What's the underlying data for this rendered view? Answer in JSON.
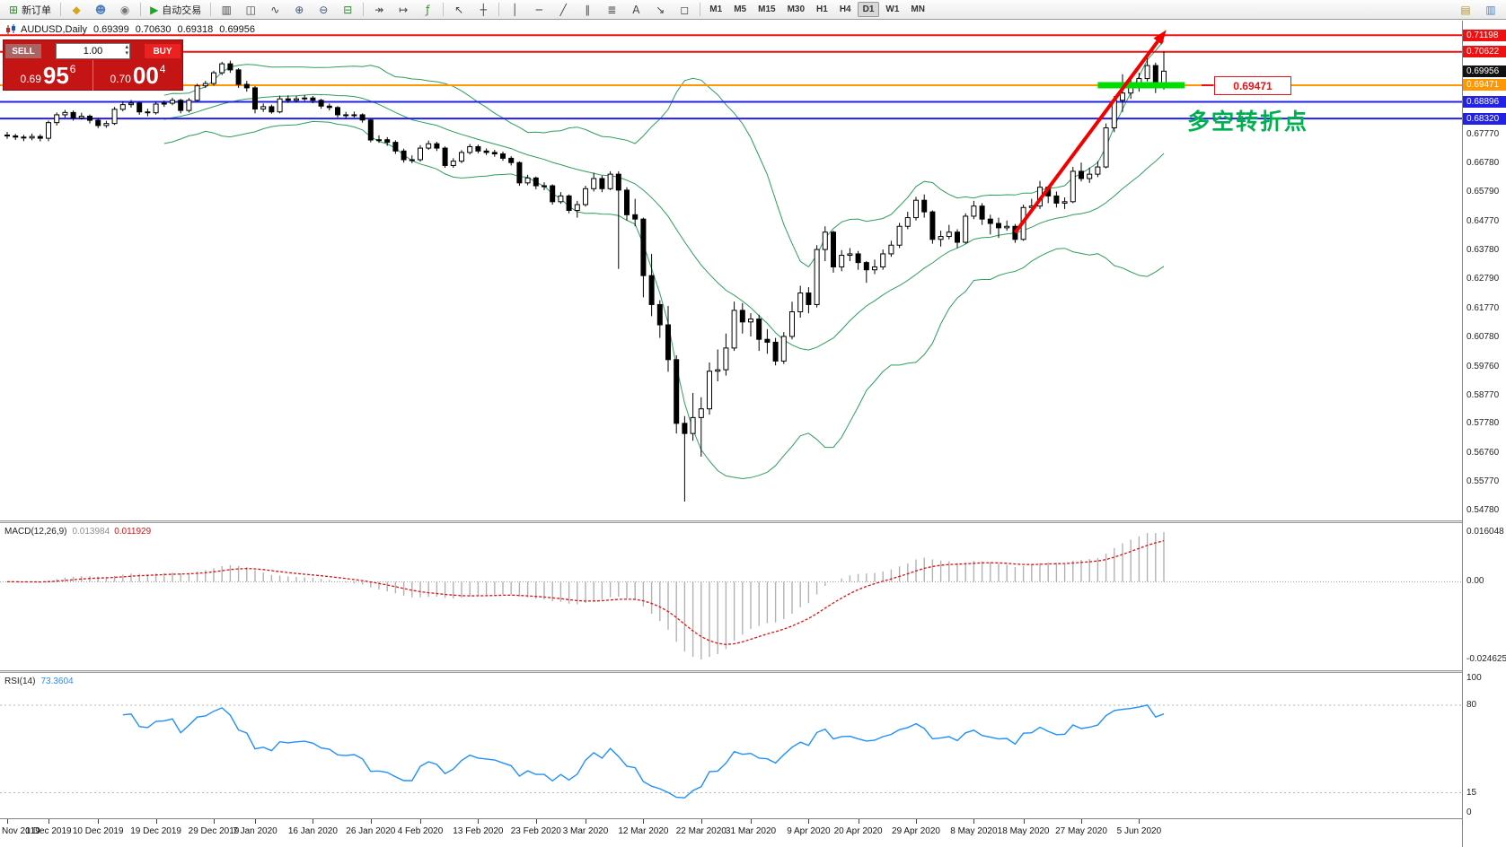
{
  "header": {
    "symbol": "AUDUSD,Daily",
    "open": "0.69399",
    "high": "0.70630",
    "low": "0.69318",
    "close": "0.69956"
  },
  "trade_panel": {
    "sell_label": "SELL",
    "buy_label": "BUY",
    "volume": "1.00",
    "bid": {
      "prefix": "0.69",
      "big": "95",
      "sup": "6"
    },
    "ask": {
      "prefix": "0.70",
      "big": "00",
      "sup": "4"
    }
  },
  "glyphs": {
    "caret_up": "▴",
    "caret_down": "▾"
  },
  "toolbar": {
    "new_order": {
      "label": "新订单",
      "icon": "⊞",
      "icon_color": "#2e8b2e"
    },
    "autotrading": {
      "label": "自动交易",
      "icon": "▶",
      "icon_color": "#1fa51f"
    },
    "icons_a": [
      {
        "name": "accounts-icon",
        "glyph": "◆",
        "color": "#d9a520"
      },
      {
        "name": "community-icon",
        "glyph": "☻",
        "color": "#4f81bd"
      },
      {
        "name": "notifications-icon",
        "glyph": "◉",
        "color": "#777777"
      }
    ],
    "icons_b": [
      {
        "name": "bar-chart-icon",
        "glyph": "▥",
        "color": "#444444"
      },
      {
        "name": "candlestick-chart-icon",
        "glyph": "◫",
        "color": "#444444"
      },
      {
        "name": "line-chart-icon",
        "glyph": "∿",
        "color": "#444444"
      },
      {
        "name": "zoom-in-icon",
        "glyph": "⊕",
        "color": "#44547a"
      },
      {
        "name": "zoom-out-icon",
        "glyph": "⊖",
        "color": "#44547a"
      },
      {
        "name": "templates-icon",
        "glyph": "⊟",
        "color": "#2e8b2e"
      }
    ],
    "icons_c": [
      {
        "name": "auto-scroll-icon",
        "glyph": "↠",
        "color": "#444444"
      },
      {
        "name": "chart-shift-icon",
        "glyph": "↦",
        "color": "#444444"
      },
      {
        "name": "indicators-icon",
        "glyph": "ƒ",
        "color": "#2e8b2e"
      }
    ],
    "icons_d": [
      {
        "name": "cursor-icon",
        "glyph": "↖",
        "color": "#444444"
      },
      {
        "name": "crosshair-icon",
        "glyph": "┼",
        "color": "#444444"
      }
    ],
    "icons_e": [
      {
        "name": "vertical-line-icon",
        "glyph": "│",
        "color": "#444444"
      },
      {
        "name": "horizontal-line-icon",
        "glyph": "─",
        "color": "#444444"
      },
      {
        "name": "trendline-icon",
        "glyph": "╱",
        "color": "#444444"
      },
      {
        "name": "channel-icon",
        "glyph": "∥",
        "color": "#444444"
      },
      {
        "name": "fibonacci-icon",
        "glyph": "≣",
        "color": "#444444"
      },
      {
        "name": "text-icon",
        "glyph": "A",
        "color": "#444444"
      },
      {
        "name": "arrows-icon",
        "glyph": "↘",
        "color": "#444444"
      },
      {
        "name": "shapes-icon",
        "glyph": "◻",
        "color": "#444444"
      }
    ],
    "timeframes": [
      "M1",
      "M5",
      "M15",
      "M30",
      "H1",
      "H4",
      "D1",
      "W1",
      "MN"
    ],
    "active_timeframe": "D1",
    "right_icons": [
      {
        "name": "new-chart-icon",
        "glyph": "▤",
        "color": "#b8952e"
      },
      {
        "name": "window-list-icon",
        "glyph": "▥",
        "color": "#4f81bd"
      }
    ]
  },
  "price_axis": {
    "ticks": [
      "0.67770",
      "0.66780",
      "0.65790",
      "0.64770",
      "0.63780",
      "0.62790",
      "0.61770",
      "0.60780",
      "0.59760",
      "0.58770",
      "0.57780",
      "0.56760",
      "0.55770",
      "0.54780"
    ],
    "badges": [
      {
        "text": "0.71198",
        "price": 0.71198,
        "bg": "#ee1111",
        "fg": "#ffffff"
      },
      {
        "text": "0.70622",
        "price": 0.70622,
        "bg": "#ee1111",
        "fg": "#ffffff"
      },
      {
        "text": "0.69956",
        "price": 0.69956,
        "bg": "#111111",
        "fg": "#ffffff"
      },
      {
        "text": "0.69471",
        "price": 0.69471,
        "bg": "#ff9800",
        "fg": "#ffffff"
      },
      {
        "text": "0.68896",
        "price": 0.68896,
        "bg": "#2121e8",
        "fg": "#ffffff"
      },
      {
        "text": "0.68320",
        "price": 0.6832,
        "bg": "#2121e8",
        "fg": "#ffffff"
      }
    ]
  },
  "macd_panel": {
    "label": "MACD(12,26,9)",
    "main_value": "0.013984",
    "signal_value": "0.011929",
    "fast": 12,
    "slow": 26,
    "signal": 9,
    "axis_max": "0.016048",
    "axis_zero": "0.00",
    "axis_min": "-0.024625",
    "histogram_color": "#b2b2b2",
    "signal_color": "#e01010"
  },
  "rsi_panel": {
    "label": "RSI(14)",
    "value": "73.3604",
    "period": 14,
    "axis_labels": [
      "100",
      "80",
      "15",
      "0"
    ],
    "levels": [
      80,
      15
    ],
    "line_color": "#1e90ff"
  },
  "chart_data": {
    "type": "candlestick",
    "symbol": "AUDUSD",
    "timeframe": "Daily",
    "title": "AUDUSD,Daily 0.69399 0.70630 0.69318 0.69956",
    "y_range": [
      0.5445,
      0.717
    ],
    "last_ohlc": {
      "open": 0.69399,
      "high": 0.7063,
      "low": 0.69318,
      "close": 0.69956
    },
    "candle_colors": {
      "up": "#ffffff",
      "down": "#000000",
      "outline": "#000000"
    },
    "overlays": {
      "bollinger_period": 20,
      "bollinger_deviation": 2,
      "bollinger_color": "#2e9e5b"
    },
    "levels": [
      {
        "price": 0.71198,
        "color": "#ee1111",
        "width": 2
      },
      {
        "price": 0.70622,
        "color": "#ee1111",
        "width": 2
      },
      {
        "price": 0.69471,
        "color": "#ff9800",
        "width": 2
      },
      {
        "price": 0.68896,
        "color": "#2121e8",
        "width": 2
      },
      {
        "price": 0.6832,
        "color": "#2121e8",
        "width": 2
      }
    ],
    "highlight": {
      "price": 0.69471,
      "from_index": 132,
      "to_index": 142.5,
      "color": "#00dd00"
    },
    "arrow": {
      "from_index": 122,
      "from_price": 0.6438,
      "to_index": 140.3,
      "to_price": 0.7138,
      "color": "#f20000"
    },
    "annotation": {
      "text": "多空转折点",
      "color": "#00b050"
    },
    "price_label": {
      "text": "0.69471",
      "color": "#e81010"
    },
    "x_labels": [
      {
        "label": "Nov 2019",
        "index": 0
      },
      {
        "label": "1 Dec 2019",
        "index": 5
      },
      {
        "label": "10 Dec 2019",
        "index": 11
      },
      {
        "label": "19 Dec 2019",
        "index": 18
      },
      {
        "label": "29 Dec 2019",
        "index": 25
      },
      {
        "label": "7 Jan 2020",
        "index": 30
      },
      {
        "label": "16 Jan 2020",
        "index": 37
      },
      {
        "label": "26 Jan 2020",
        "index": 44
      },
      {
        "label": "4 Feb 2020",
        "index": 50
      },
      {
        "label": "13 Feb 2020",
        "index": 57
      },
      {
        "label": "23 Feb 2020",
        "index": 64
      },
      {
        "label": "3 Mar 2020",
        "index": 70
      },
      {
        "label": "12 Mar 2020",
        "index": 77
      },
      {
        "label": "22 Mar 2020",
        "index": 84
      },
      {
        "label": "31 Mar 2020",
        "index": 90
      },
      {
        "label": "9 Apr 2020",
        "index": 97
      },
      {
        "label": "20 Apr 2020",
        "index": 103
      },
      {
        "label": "29 Apr 2020",
        "index": 110
      },
      {
        "label": "8 May 2020",
        "index": 117
      },
      {
        "label": "18 May 2020",
        "index": 123
      },
      {
        "label": "27 May 2020",
        "index": 130
      },
      {
        "label": "5 Jun 2020",
        "index": 137
      }
    ],
    "candles": [
      [
        0.6775,
        0.6786,
        0.6762,
        0.6772
      ],
      [
        0.6772,
        0.6779,
        0.6758,
        0.6768
      ],
      [
        0.6768,
        0.6776,
        0.6754,
        0.6765
      ],
      [
        0.6765,
        0.678,
        0.6757,
        0.677
      ],
      [
        0.677,
        0.6778,
        0.6753,
        0.6764
      ],
      [
        0.6764,
        0.6825,
        0.6754,
        0.6818
      ],
      [
        0.6818,
        0.6853,
        0.6808,
        0.6845
      ],
      [
        0.6845,
        0.6862,
        0.6835,
        0.6853
      ],
      [
        0.6853,
        0.686,
        0.6825,
        0.6834
      ],
      [
        0.6834,
        0.6852,
        0.6828,
        0.684
      ],
      [
        0.684,
        0.6846,
        0.6815,
        0.6826
      ],
      [
        0.6826,
        0.6833,
        0.6799,
        0.6808
      ],
      [
        0.6808,
        0.6824,
        0.68,
        0.6815
      ],
      [
        0.6815,
        0.6872,
        0.681,
        0.6864
      ],
      [
        0.6864,
        0.6892,
        0.6857,
        0.688
      ],
      [
        0.688,
        0.6896,
        0.687,
        0.6885
      ],
      [
        0.6885,
        0.689,
        0.6845,
        0.6855
      ],
      [
        0.6855,
        0.6866,
        0.684,
        0.6852
      ],
      [
        0.6852,
        0.689,
        0.6846,
        0.6882
      ],
      [
        0.6882,
        0.6894,
        0.6872,
        0.6885
      ],
      [
        0.6885,
        0.6904,
        0.6878,
        0.6895
      ],
      [
        0.6895,
        0.69,
        0.685,
        0.686
      ],
      [
        0.686,
        0.6903,
        0.6853,
        0.6895
      ],
      [
        0.6895,
        0.6952,
        0.689,
        0.6945
      ],
      [
        0.6945,
        0.6962,
        0.6938,
        0.6953
      ],
      [
        0.6953,
        0.6997,
        0.6946,
        0.699
      ],
      [
        0.699,
        0.7028,
        0.6982,
        0.7021
      ],
      [
        0.7021,
        0.7032,
        0.699,
        0.7
      ],
      [
        0.7,
        0.7006,
        0.6938,
        0.695
      ],
      [
        0.695,
        0.6962,
        0.6925,
        0.6938
      ],
      [
        0.6938,
        0.6944,
        0.685,
        0.6865
      ],
      [
        0.6865,
        0.6884,
        0.6855,
        0.6873
      ],
      [
        0.6873,
        0.688,
        0.6849,
        0.6855
      ],
      [
        0.6855,
        0.6911,
        0.685,
        0.69
      ],
      [
        0.69,
        0.6912,
        0.6886,
        0.6895
      ],
      [
        0.6895,
        0.691,
        0.6887,
        0.69
      ],
      [
        0.69,
        0.6913,
        0.6893,
        0.6903
      ],
      [
        0.6903,
        0.691,
        0.6885,
        0.6895
      ],
      [
        0.6895,
        0.69,
        0.6866,
        0.6875
      ],
      [
        0.6875,
        0.6884,
        0.686,
        0.687
      ],
      [
        0.687,
        0.6875,
        0.6836,
        0.6845
      ],
      [
        0.6845,
        0.6855,
        0.6832,
        0.6842
      ],
      [
        0.6842,
        0.6856,
        0.6835,
        0.6845
      ],
      [
        0.6845,
        0.685,
        0.6818,
        0.6827
      ],
      [
        0.6827,
        0.6831,
        0.675,
        0.6758
      ],
      [
        0.6758,
        0.6774,
        0.6748,
        0.6759
      ],
      [
        0.6759,
        0.6768,
        0.6738,
        0.675
      ],
      [
        0.675,
        0.6757,
        0.671,
        0.672
      ],
      [
        0.672,
        0.6728,
        0.668,
        0.669
      ],
      [
        0.669,
        0.6705,
        0.6678,
        0.669
      ],
      [
        0.669,
        0.674,
        0.6683,
        0.673
      ],
      [
        0.673,
        0.6756,
        0.6724,
        0.6745
      ],
      [
        0.6745,
        0.6752,
        0.672,
        0.673
      ],
      [
        0.673,
        0.6736,
        0.6662,
        0.667
      ],
      [
        0.667,
        0.6695,
        0.6662,
        0.6685
      ],
      [
        0.6685,
        0.6723,
        0.6678,
        0.6715
      ],
      [
        0.6715,
        0.6744,
        0.6708,
        0.6735
      ],
      [
        0.6735,
        0.6742,
        0.6712,
        0.672
      ],
      [
        0.672,
        0.6729,
        0.6706,
        0.6715
      ],
      [
        0.6715,
        0.6724,
        0.67,
        0.671
      ],
      [
        0.671,
        0.6718,
        0.6686,
        0.6695
      ],
      [
        0.6695,
        0.6702,
        0.667,
        0.668
      ],
      [
        0.668,
        0.6684,
        0.66,
        0.661
      ],
      [
        0.661,
        0.6638,
        0.6602,
        0.6627
      ],
      [
        0.6627,
        0.6632,
        0.6588,
        0.66
      ],
      [
        0.66,
        0.6612,
        0.6585,
        0.66
      ],
      [
        0.66,
        0.6605,
        0.6535,
        0.6545
      ],
      [
        0.6545,
        0.6578,
        0.6538,
        0.6565
      ],
      [
        0.6565,
        0.657,
        0.6505,
        0.6515
      ],
      [
        0.6515,
        0.6548,
        0.649,
        0.6535
      ],
      [
        0.6535,
        0.66,
        0.6528,
        0.659
      ],
      [
        0.659,
        0.6645,
        0.658,
        0.6625
      ],
      [
        0.6625,
        0.6635,
        0.6578,
        0.659
      ],
      [
        0.659,
        0.665,
        0.6585,
        0.664
      ],
      [
        0.664,
        0.665,
        0.6313,
        0.6585
      ],
      [
        0.6585,
        0.6595,
        0.648,
        0.65
      ],
      [
        0.65,
        0.6555,
        0.646,
        0.6485
      ],
      [
        0.6485,
        0.649,
        0.6215,
        0.629
      ],
      [
        0.629,
        0.6365,
        0.615,
        0.619
      ],
      [
        0.619,
        0.6205,
        0.6075,
        0.612
      ],
      [
        0.612,
        0.6185,
        0.5958,
        0.6
      ],
      [
        0.6,
        0.6015,
        0.5745,
        0.578
      ],
      [
        0.578,
        0.5805,
        0.551,
        0.5745
      ],
      [
        0.5745,
        0.5885,
        0.572,
        0.58
      ],
      [
        0.58,
        0.587,
        0.5665,
        0.583
      ],
      [
        0.583,
        0.599,
        0.581,
        0.596
      ],
      [
        0.596,
        0.6035,
        0.5925,
        0.5965
      ],
      [
        0.5965,
        0.609,
        0.5945,
        0.604
      ],
      [
        0.604,
        0.62,
        0.603,
        0.617
      ],
      [
        0.617,
        0.6195,
        0.609,
        0.613
      ],
      [
        0.613,
        0.616,
        0.608,
        0.614
      ],
      [
        0.614,
        0.6155,
        0.603,
        0.607
      ],
      [
        0.607,
        0.6105,
        0.602,
        0.606
      ],
      [
        0.606,
        0.6075,
        0.598,
        0.5995
      ],
      [
        0.5995,
        0.6095,
        0.5985,
        0.608
      ],
      [
        0.608,
        0.62,
        0.607,
        0.6165
      ],
      [
        0.6165,
        0.6255,
        0.6145,
        0.623
      ],
      [
        0.623,
        0.625,
        0.616,
        0.619
      ],
      [
        0.619,
        0.6395,
        0.618,
        0.638
      ],
      [
        0.638,
        0.646,
        0.634,
        0.644
      ],
      [
        0.644,
        0.6445,
        0.63,
        0.632
      ],
      [
        0.632,
        0.6378,
        0.6305,
        0.636
      ],
      [
        0.636,
        0.6385,
        0.634,
        0.6365
      ],
      [
        0.6365,
        0.6375,
        0.631,
        0.6335
      ],
      [
        0.6335,
        0.634,
        0.6265,
        0.631
      ],
      [
        0.631,
        0.6345,
        0.6295,
        0.632
      ],
      [
        0.632,
        0.638,
        0.631,
        0.6365
      ],
      [
        0.6365,
        0.641,
        0.6355,
        0.6395
      ],
      [
        0.6395,
        0.6472,
        0.6385,
        0.646
      ],
      [
        0.646,
        0.651,
        0.645,
        0.649
      ],
      [
        0.649,
        0.6562,
        0.648,
        0.655
      ],
      [
        0.655,
        0.657,
        0.649,
        0.651
      ],
      [
        0.651,
        0.6515,
        0.64,
        0.6415
      ],
      [
        0.6415,
        0.6445,
        0.639,
        0.6425
      ],
      [
        0.6425,
        0.6465,
        0.6415,
        0.644
      ],
      [
        0.644,
        0.645,
        0.6385,
        0.6405
      ],
      [
        0.6405,
        0.6505,
        0.64,
        0.6495
      ],
      [
        0.6495,
        0.6548,
        0.6485,
        0.653
      ],
      [
        0.653,
        0.654,
        0.6465,
        0.6485
      ],
      [
        0.6485,
        0.65,
        0.6432,
        0.647
      ],
      [
        0.647,
        0.649,
        0.642,
        0.6455
      ],
      [
        0.6455,
        0.648,
        0.6445,
        0.646
      ],
      [
        0.646,
        0.6468,
        0.6403,
        0.6415
      ],
      [
        0.6415,
        0.6535,
        0.641,
        0.6525
      ],
      [
        0.6525,
        0.6555,
        0.651,
        0.653
      ],
      [
        0.653,
        0.6617,
        0.652,
        0.6595
      ],
      [
        0.6595,
        0.66,
        0.654,
        0.6565
      ],
      [
        0.6565,
        0.658,
        0.6525,
        0.654
      ],
      [
        0.654,
        0.656,
        0.652,
        0.6545
      ],
      [
        0.6545,
        0.6665,
        0.654,
        0.665
      ],
      [
        0.665,
        0.668,
        0.6615,
        0.6625
      ],
      [
        0.6625,
        0.6663,
        0.661,
        0.664
      ],
      [
        0.664,
        0.6685,
        0.663,
        0.6665
      ],
      [
        0.6665,
        0.6815,
        0.666,
        0.68
      ],
      [
        0.68,
        0.691,
        0.6785,
        0.6895
      ],
      [
        0.6895,
        0.6985,
        0.6855,
        0.692
      ],
      [
        0.692,
        0.6965,
        0.69,
        0.694
      ],
      [
        0.694,
        0.699,
        0.6925,
        0.697
      ],
      [
        0.697,
        0.7043,
        0.696,
        0.7015
      ],
      [
        0.7015,
        0.7025,
        0.692,
        0.694
      ],
      [
        0.69399,
        0.7063,
        0.69318,
        0.69956
      ]
    ]
  }
}
